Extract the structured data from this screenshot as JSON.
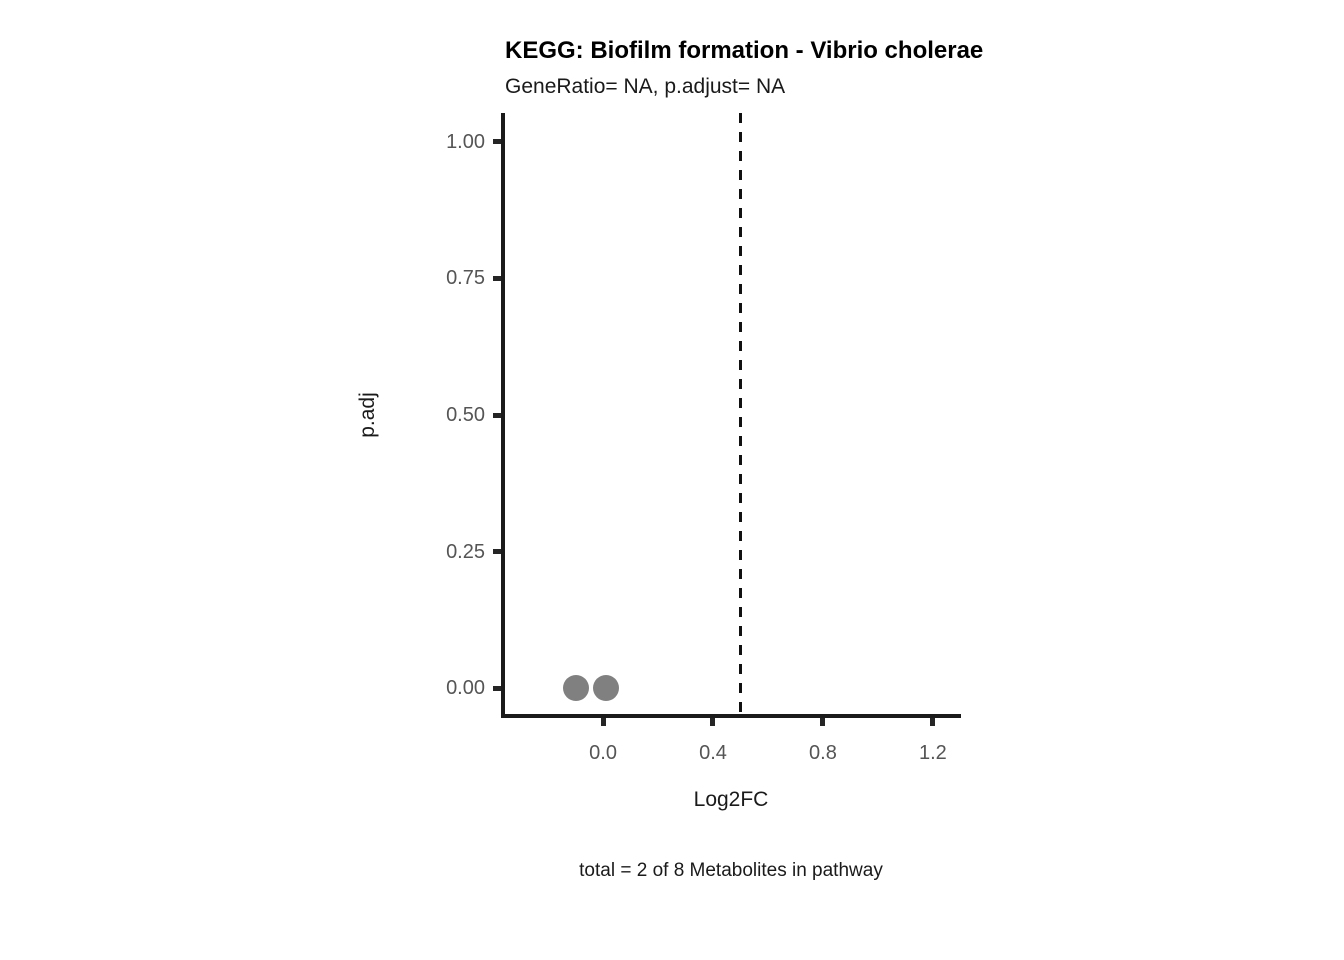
{
  "page": {
    "background_color": "#ffffff"
  },
  "chart_data": {
    "type": "scatter",
    "title": "KEGG: Biofilm formation - Vibrio cholerae",
    "subtitle": "GeneRatio= NA, p.adjust= NA",
    "xlabel": "Log2FC",
    "ylabel": "p.adj",
    "caption": "total = 2 of 8 Metabolites in pathway",
    "points": [
      {
        "x": -0.1,
        "y": 0.0
      },
      {
        "x": 0.01,
        "y": 0.0
      }
    ],
    "vline": {
      "x": 0.5,
      "style": "dashed",
      "color": "#111111"
    },
    "x_ticks": [
      0.0,
      0.4,
      0.8,
      1.2
    ],
    "x_tick_labels": [
      "0.0",
      "0.4",
      "0.8",
      "1.2"
    ],
    "y_ticks": [
      0.0,
      0.25,
      0.5,
      0.75,
      1.0
    ],
    "y_tick_labels": [
      "0.00",
      "0.25",
      "0.50",
      "0.75",
      "1.00"
    ],
    "xlim": [
      -0.364,
      1.295
    ],
    "ylim": [
      -0.051,
      1.053
    ],
    "grid": false,
    "legend": "none",
    "point_color": "#808080",
    "axis_line_color": "#1a1a1a",
    "axis_text_color": "#555555",
    "title_color": "#000000"
  }
}
